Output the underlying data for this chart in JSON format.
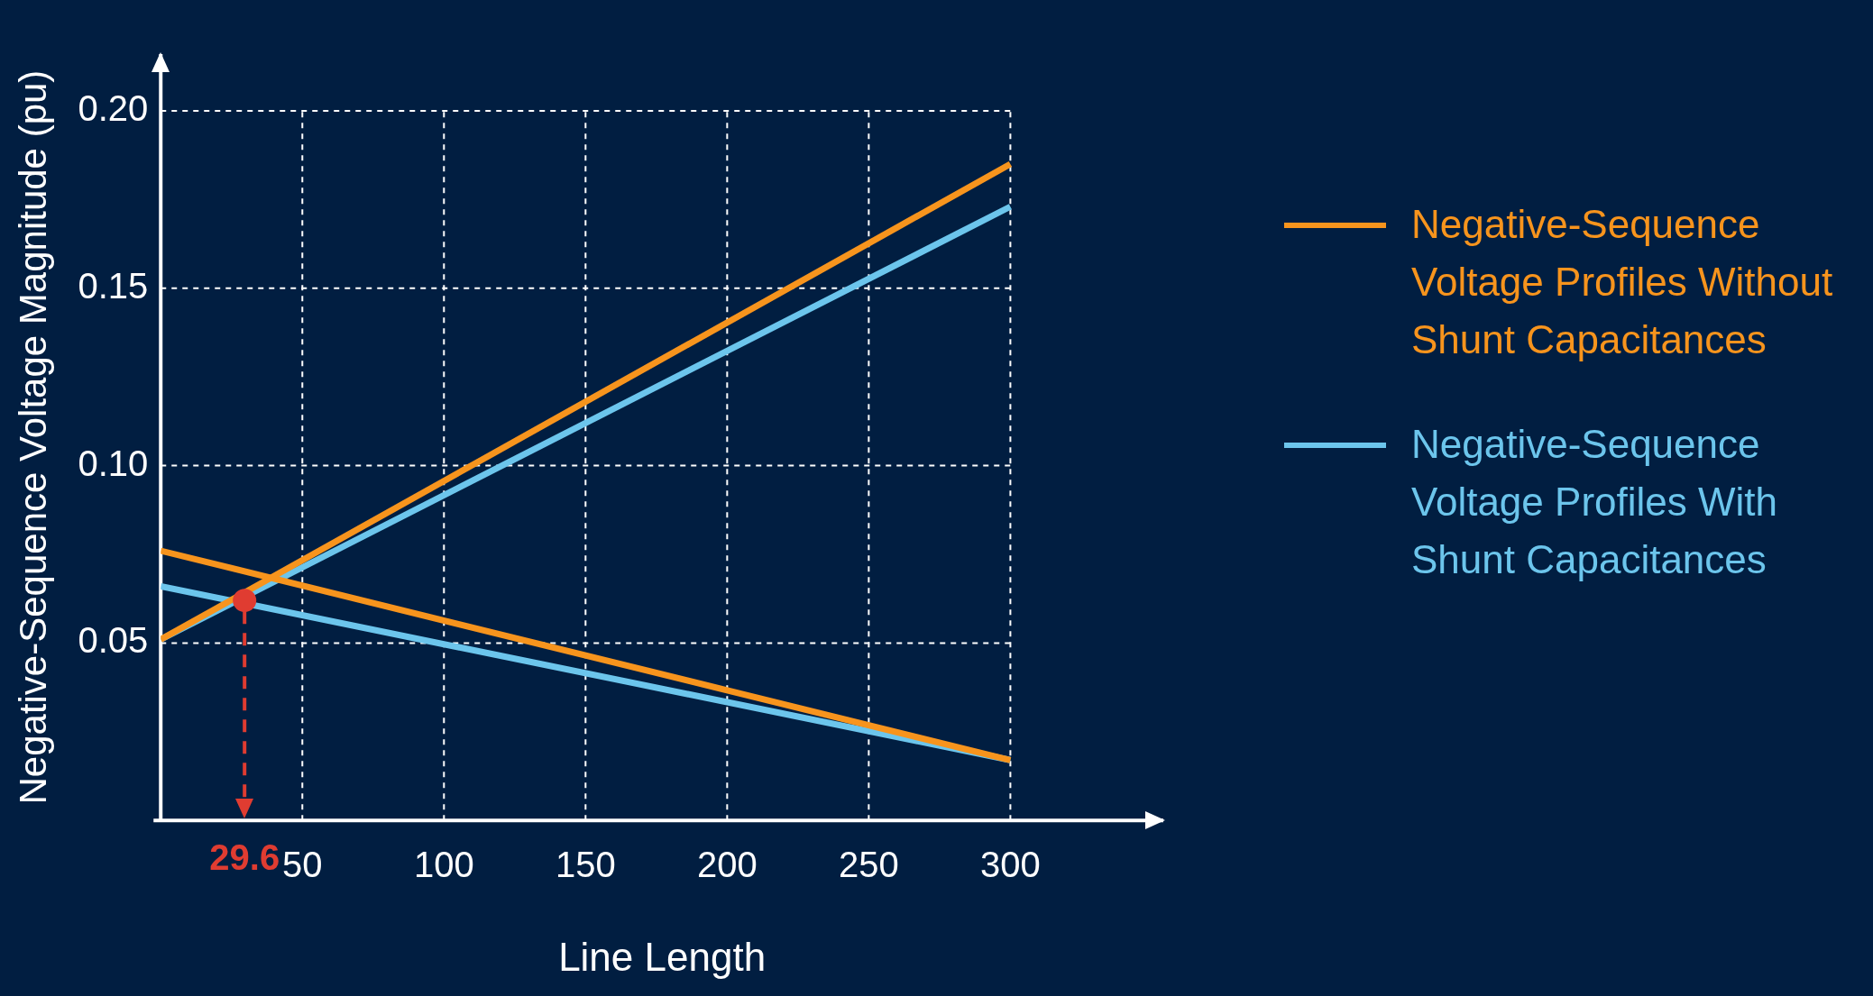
{
  "chart_data": {
    "type": "line",
    "xlabel": "Line Length",
    "ylabel": "Negative-Sequence Voltage Magnitude (pu)",
    "xlim": [
      0,
      354
    ],
    "ylim": [
      0,
      0.216
    ],
    "xticks": [
      50,
      100,
      150,
      200,
      250,
      300
    ],
    "yticks": [
      {
        "value": 0.05,
        "label": "0.05"
      },
      {
        "value": 0.1,
        "label": "0.10"
      },
      {
        "value": 0.15,
        "label": "0.15"
      },
      {
        "value": 0.2,
        "label": "0.20"
      }
    ],
    "grid": true,
    "legend": "right",
    "line_style": "solid",
    "series": [
      {
        "name": "Negative-Sequence Voltage Profiles Without Shunt Capacitances",
        "color": "#f7941d",
        "x": [
          0,
          300
        ],
        "values": [
          0.051,
          0.185
        ]
      },
      {
        "color": "#f7941d",
        "x": [
          0,
          300
        ],
        "values": [
          0.076,
          0.017
        ]
      },
      {
        "name": "Negative-Sequence Voltage Profiles With Shunt Capacitances",
        "color": "#6cc5ec",
        "x": [
          0,
          300
        ],
        "values": [
          0.051,
          0.173
        ]
      },
      {
        "color": "#6cc5ec",
        "x": [
          0,
          300
        ],
        "values": [
          0.066,
          0.017
        ]
      },
      {
        "type": "scatter",
        "color": "#e03c31",
        "x": [
          29.6
        ],
        "values": [
          0.062
        ]
      }
    ],
    "ref_lines": [
      {
        "axis": "x",
        "value": 29.6,
        "label": "29.6",
        "color": "#e03c31",
        "line_style": "dashed"
      }
    ]
  }
}
